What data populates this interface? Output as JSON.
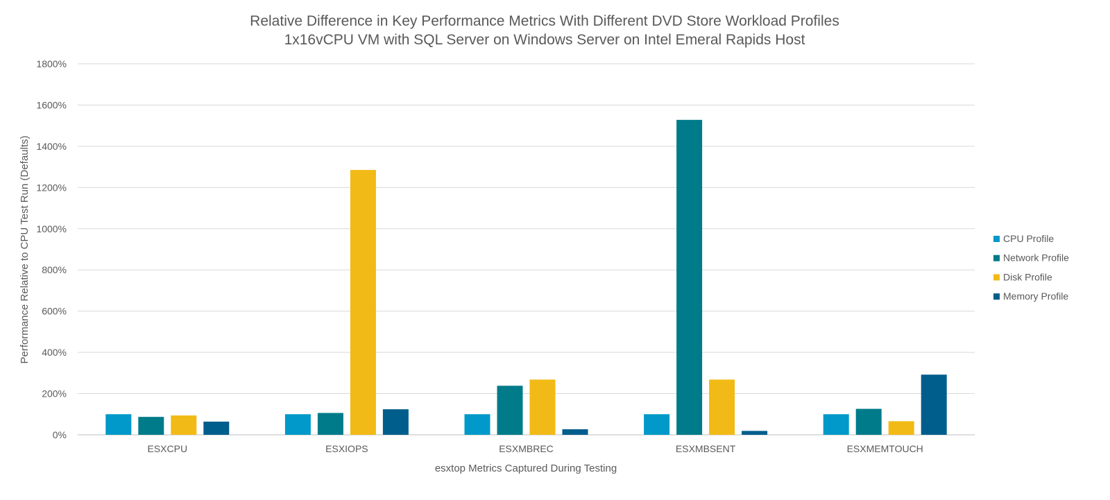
{
  "chart_data": {
    "type": "bar",
    "title": "Relative Difference in Key Performance Metrics With Different DVD Store Workload Profiles",
    "subtitle": "1x16vCPU  VM with SQL Server on Windows Server on Intel Emeral Rapids Host",
    "xlabel": "esxtop Metrics Captured During Testing",
    "ylabel": "Performance Relative to CPU Test Run (Defaults)",
    "ylim": [
      0,
      1800
    ],
    "yticks": [
      0,
      200,
      400,
      600,
      800,
      1000,
      1200,
      1400,
      1600,
      1800
    ],
    "ytick_suffix": "%",
    "grid": true,
    "legend_position": "right",
    "categories": [
      "ESXCPU",
      "ESXIOPS",
      "ESXMBREC",
      "ESXMBSENT",
      "ESXMEMTOUCH"
    ],
    "series": [
      {
        "name": "CPU Profile",
        "color": "#0099C9",
        "values": [
          100,
          100,
          100,
          100,
          100
        ]
      },
      {
        "name": "Network Profile",
        "color": "#007B8A",
        "values": [
          87,
          106,
          238,
          1528,
          126
        ]
      },
      {
        "name": "Disk Profile",
        "color": "#F2BA16",
        "values": [
          94,
          1285,
          268,
          268,
          66
        ]
      },
      {
        "name": "Memory Profile",
        "color": "#005E8C",
        "values": [
          64,
          124,
          27,
          19,
          292
        ]
      }
    ]
  }
}
